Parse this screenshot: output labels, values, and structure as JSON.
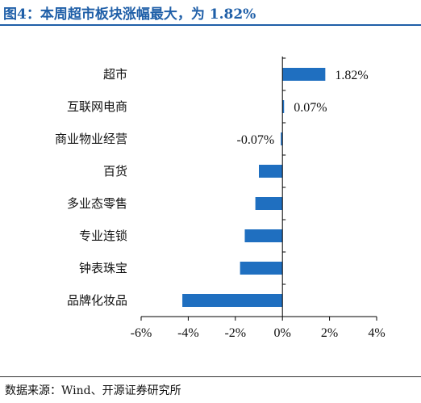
{
  "title": "图4：本周超市板块涨幅最大，为 1.82%",
  "source": "数据来源：Wind、开源证券研究所",
  "colors": {
    "bar": "#1f6fc0",
    "title": "#1f5fa8",
    "axis": "#000000"
  },
  "chart_data": {
    "type": "bar",
    "orientation": "horizontal",
    "categories": [
      "超市",
      "互联网电商",
      "商业物业经营",
      "百货",
      "多业态零售",
      "专业连锁",
      "钟表珠宝",
      "品牌化妆品"
    ],
    "values": [
      1.82,
      0.07,
      -0.07,
      -1.0,
      -1.15,
      -1.6,
      -1.8,
      -4.25
    ],
    "data_labels": [
      "1.82%",
      "0.07%",
      "-0.07%",
      null,
      null,
      null,
      null,
      null
    ],
    "xlim": [
      -6,
      4
    ],
    "xticks": [
      -6,
      -4,
      -2,
      0,
      2,
      4
    ],
    "xtick_labels": [
      "-6%",
      "-4%",
      "-2%",
      "0%",
      "2%",
      "4%"
    ],
    "grid": false,
    "legend": "none"
  }
}
